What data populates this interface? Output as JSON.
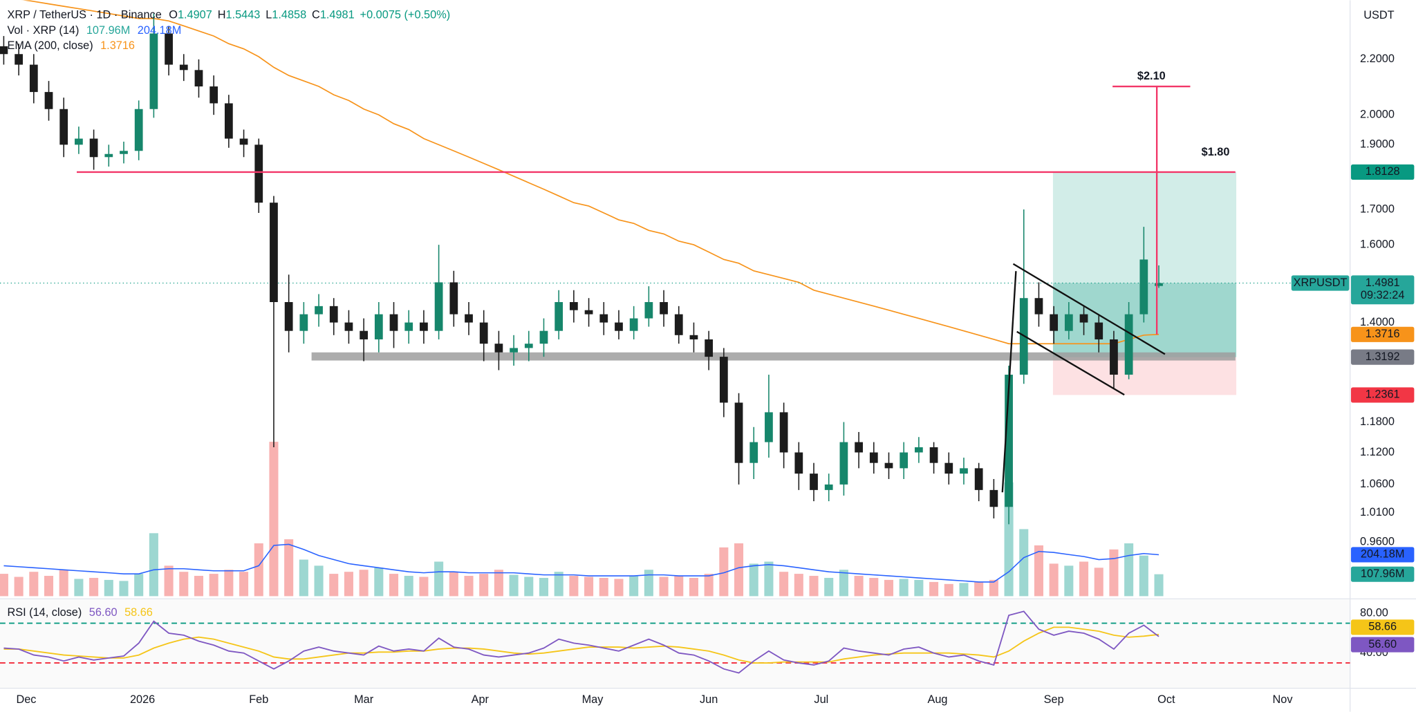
{
  "chart_data": {
    "type": "candlestick",
    "title": "XRP / TetherUS · 1D · Binance",
    "currency": "USDT",
    "ohlc_prefixes": [
      "O",
      "H",
      "L",
      "C"
    ],
    "change": "+0.0075 (+0.50%)",
    "symbol_label": "XRPUSDT",
    "countdown": "09:32:24",
    "log_scale": true,
    "up_color": "#16866b",
    "down_color": "#1c1c1c",
    "x": [
      0,
      4,
      8,
      12,
      16,
      20,
      24,
      28,
      32,
      36,
      40,
      44,
      48,
      52,
      56,
      60,
      64,
      68,
      72,
      76,
      80,
      84,
      88,
      92,
      96,
      100,
      104,
      108,
      112,
      116,
      120,
      124,
      128,
      132,
      136,
      140,
      144,
      148,
      152,
      156,
      160,
      164,
      168,
      172,
      176,
      180,
      184,
      188,
      192,
      196,
      200,
      204,
      208,
      212,
      216,
      220,
      224,
      228,
      232,
      236,
      240,
      244,
      248,
      252,
      256,
      260,
      264,
      268,
      272,
      276,
      280,
      284,
      288,
      292,
      296,
      300,
      304,
      308
    ],
    "xlim": [
      -1,
      359
    ],
    "xticks": [
      {
        "value": 6,
        "label": "Dec"
      },
      {
        "value": 37,
        "label": "2026"
      },
      {
        "value": 68,
        "label": "Feb"
      },
      {
        "value": 96,
        "label": "Mar"
      },
      {
        "value": 127,
        "label": "Apr"
      },
      {
        "value": 157,
        "label": "May"
      },
      {
        "value": 188,
        "label": "Jun"
      },
      {
        "value": 218,
        "label": "Jul"
      },
      {
        "value": 249,
        "label": "Aug"
      },
      {
        "value": 280,
        "label": "Sep"
      },
      {
        "value": 310,
        "label": "Oct"
      },
      {
        "value": 341,
        "label": "Nov"
      }
    ],
    "ylim": [
      0.875,
      2.435
    ],
    "yticks": [
      {
        "value": 2.2,
        "label": "2.2000"
      },
      {
        "value": 2,
        "label": "2.0000"
      },
      {
        "value": 1.9,
        "label": "1.9000"
      },
      {
        "value": 1.7,
        "label": "1.7000"
      },
      {
        "value": 1.6,
        "label": "1.6000"
      },
      {
        "value": 1.4,
        "label": "1.4000"
      },
      {
        "value": 1.18,
        "label": "1.1800"
      },
      {
        "value": 1.12,
        "label": "1.1200"
      },
      {
        "value": 1.06,
        "label": "1.0600"
      },
      {
        "value": 1.01,
        "label": "1.0100"
      },
      {
        "value": 0.96,
        "label": "0.9600"
      }
    ],
    "open": [
      2.25,
      2.22,
      2.18,
      2.08,
      2.02,
      1.9,
      1.92,
      1.86,
      1.87,
      1.88,
      2.02,
      2.3,
      2.18,
      2.16,
      2.1,
      2.04,
      1.92,
      1.9,
      1.72,
      1.45,
      1.38,
      1.42,
      1.44,
      1.4,
      1.38,
      1.36,
      1.42,
      1.38,
      1.4,
      1.38,
      1.5,
      1.42,
      1.4,
      1.35,
      1.33,
      1.34,
      1.35,
      1.38,
      1.45,
      1.43,
      1.42,
      1.4,
      1.38,
      1.41,
      1.45,
      1.42,
      1.37,
      1.36,
      1.32,
      1.22,
      1.1,
      1.14,
      1.2,
      1.12,
      1.08,
      1.05,
      1.06,
      1.14,
      1.12,
      1.1,
      1.09,
      1.12,
      1.13,
      1.1,
      1.08,
      1.09,
      1.05,
      1.02,
      1.28,
      1.46,
      1.42,
      1.38,
      1.42,
      1.4,
      1.36,
      1.28,
      1.42,
      1.4907
    ],
    "high": [
      2.29,
      2.26,
      2.22,
      2.12,
      2.06,
      1.96,
      1.95,
      1.9,
      1.91,
      2.05,
      2.38,
      2.33,
      2.22,
      2.2,
      2.14,
      2.07,
      1.95,
      1.92,
      1.74,
      1.52,
      1.45,
      1.47,
      1.46,
      1.43,
      1.41,
      1.45,
      1.45,
      1.43,
      1.43,
      1.6,
      1.53,
      1.45,
      1.43,
      1.38,
      1.37,
      1.38,
      1.41,
      1.48,
      1.48,
      1.46,
      1.45,
      1.43,
      1.44,
      1.49,
      1.48,
      1.44,
      1.4,
      1.38,
      1.34,
      1.24,
      1.17,
      1.28,
      1.22,
      1.14,
      1.1,
      1.08,
      1.18,
      1.16,
      1.14,
      1.12,
      1.14,
      1.15,
      1.14,
      1.12,
      1.11,
      1.1,
      1.07,
      1.3,
      1.7,
      1.5,
      1.44,
      1.45,
      1.44,
      1.42,
      1.38,
      1.45,
      1.65,
      1.5443
    ],
    "low": [
      2.18,
      2.14,
      2.04,
      1.98,
      1.86,
      1.87,
      1.82,
      1.83,
      1.84,
      1.85,
      1.99,
      2.14,
      2.12,
      2.06,
      2.0,
      1.89,
      1.86,
      1.69,
      1.13,
      1.33,
      1.35,
      1.39,
      1.37,
      1.35,
      1.31,
      1.33,
      1.34,
      1.35,
      1.35,
      1.36,
      1.39,
      1.37,
      1.31,
      1.29,
      1.3,
      1.31,
      1.32,
      1.36,
      1.4,
      1.39,
      1.37,
      1.36,
      1.36,
      1.39,
      1.39,
      1.35,
      1.33,
      1.29,
      1.19,
      1.06,
      1.07,
      1.11,
      1.09,
      1.05,
      1.03,
      1.03,
      1.04,
      1.09,
      1.08,
      1.07,
      1.07,
      1.1,
      1.08,
      1.06,
      1.06,
      1.03,
      1.0,
      0.99,
      1.26,
      1.39,
      1.35,
      1.36,
      1.37,
      1.33,
      1.25,
      1.27,
      1.4,
      1.4858
    ],
    "close": [
      2.22,
      2.18,
      2.08,
      2.02,
      1.9,
      1.92,
      1.86,
      1.87,
      1.88,
      2.02,
      2.3,
      2.18,
      2.16,
      2.1,
      2.04,
      1.92,
      1.9,
      1.72,
      1.45,
      1.38,
      1.42,
      1.44,
      1.4,
      1.38,
      1.36,
      1.42,
      1.38,
      1.4,
      1.38,
      1.5,
      1.42,
      1.4,
      1.35,
      1.33,
      1.34,
      1.35,
      1.38,
      1.45,
      1.43,
      1.42,
      1.4,
      1.38,
      1.41,
      1.45,
      1.42,
      1.37,
      1.36,
      1.32,
      1.22,
      1.1,
      1.14,
      1.2,
      1.12,
      1.08,
      1.05,
      1.06,
      1.14,
      1.12,
      1.1,
      1.09,
      1.12,
      1.13,
      1.1,
      1.08,
      1.09,
      1.05,
      1.02,
      1.28,
      1.46,
      1.42,
      1.38,
      1.42,
      1.4,
      1.36,
      1.28,
      1.42,
      1.56,
      1.4981
    ],
    "ema": {
      "name": "EMA (200, close)",
      "color": "#f7931a",
      "values": [
        2.45,
        2.44,
        2.43,
        2.42,
        2.41,
        2.4,
        2.39,
        2.38,
        2.37,
        2.36,
        2.36,
        2.35,
        2.33,
        2.31,
        2.29,
        2.26,
        2.24,
        2.21,
        2.17,
        2.14,
        2.12,
        2.1,
        2.07,
        2.05,
        2.02,
        2.0,
        1.97,
        1.95,
        1.92,
        1.9,
        1.88,
        1.86,
        1.84,
        1.82,
        1.8,
        1.78,
        1.76,
        1.74,
        1.72,
        1.71,
        1.69,
        1.67,
        1.66,
        1.64,
        1.63,
        1.61,
        1.6,
        1.58,
        1.56,
        1.55,
        1.53,
        1.52,
        1.51,
        1.5,
        1.48,
        1.47,
        1.46,
        1.45,
        1.44,
        1.43,
        1.42,
        1.41,
        1.4,
        1.39,
        1.38,
        1.37,
        1.36,
        1.35,
        1.35,
        1.35,
        1.35,
        1.35,
        1.35,
        1.35,
        1.35,
        1.36,
        1.37,
        1.3716
      ]
    },
    "volume": {
      "name": "Vol · XRP (14)",
      "ylim": [
        0,
        1000
      ],
      "up_color": "#26a69a",
      "down_color": "#ef5350",
      "values": [
        110,
        95,
        120,
        100,
        130,
        85,
        90,
        80,
        75,
        110,
        310,
        150,
        120,
        100,
        110,
        130,
        120,
        260,
        760,
        280,
        180,
        150,
        110,
        120,
        130,
        140,
        110,
        100,
        95,
        170,
        120,
        100,
        110,
        130,
        105,
        95,
        90,
        120,
        100,
        95,
        90,
        85,
        100,
        130,
        95,
        100,
        90,
        110,
        240,
        260,
        160,
        170,
        120,
        110,
        100,
        90,
        130,
        100,
        90,
        80,
        85,
        80,
        70,
        60,
        65,
        70,
        80,
        560,
        330,
        250,
        160,
        150,
        170,
        140,
        230,
        260,
        200,
        107.96
      ],
      "last_label": "107.96M",
      "ma": {
        "color": "#2962ff",
        "values": [
          150,
          145,
          140,
          135,
          130,
          125,
          120,
          115,
          110,
          110,
          130,
          135,
          135,
          130,
          125,
          125,
          125,
          150,
          250,
          255,
          230,
          200,
          180,
          160,
          150,
          140,
          130,
          120,
          115,
          120,
          120,
          115,
          115,
          115,
          115,
          110,
          105,
          105,
          105,
          100,
          100,
          100,
          100,
          105,
          105,
          100,
          100,
          100,
          115,
          140,
          150,
          155,
          150,
          140,
          130,
          120,
          115,
          110,
          105,
          100,
          95,
          90,
          85,
          80,
          75,
          70,
          70,
          120,
          190,
          220,
          215,
          205,
          195,
          180,
          185,
          200,
          210,
          204.18
        ],
        "last_label": "204.18M"
      }
    },
    "rsi": {
      "name": "RSI (14, close)",
      "color": "#7e57c2",
      "ylim": [
        4.5,
        92.7
      ],
      "yticks": [
        {
          "value": 80,
          "label": "80.00"
        },
        {
          "value": 40,
          "label": "40.00"
        }
      ],
      "bands": [
        70,
        30
      ],
      "band_colors": [
        "#089981",
        "#f23645"
      ],
      "values": [
        45,
        44,
        38,
        36,
        32,
        36,
        33,
        35,
        37,
        50,
        72,
        60,
        58,
        52,
        48,
        42,
        40,
        32,
        24,
        32,
        42,
        46,
        42,
        40,
        38,
        47,
        42,
        44,
        42,
        55,
        46,
        44,
        38,
        36,
        38,
        40,
        45,
        54,
        50,
        48,
        45,
        42,
        48,
        54,
        48,
        40,
        38,
        32,
        24,
        20,
        32,
        42,
        33,
        30,
        28,
        32,
        45,
        42,
        40,
        38,
        44,
        46,
        40,
        36,
        38,
        32,
        28,
        78,
        82,
        64,
        58,
        62,
        60,
        54,
        44,
        60,
        68,
        56.6
      ],
      "last_label": "56.60",
      "ma": {
        "color": "#f5c518",
        "values": [
          44,
          44,
          42,
          40,
          38,
          37,
          36,
          35,
          35,
          38,
          45,
          50,
          54,
          56,
          54,
          50,
          46,
          42,
          36,
          34,
          34,
          36,
          38,
          40,
          40,
          41,
          41,
          42,
          42,
          44,
          45,
          45,
          44,
          42,
          40,
          39,
          40,
          42,
          44,
          46,
          46,
          46,
          45,
          46,
          47,
          46,
          44,
          42,
          38,
          33,
          30,
          30,
          31,
          31,
          31,
          31,
          34,
          36,
          38,
          39,
          40,
          40,
          40,
          40,
          39,
          38,
          36,
          42,
          52,
          60,
          66,
          66,
          64,
          62,
          58,
          56,
          57,
          58.66
        ]
      }
    },
    "position": {
      "entry": 1.3192,
      "target": 1.8128,
      "stop": 1.2361
    },
    "annotations": [
      {
        "value": 2.1,
        "label": "$2.10"
      },
      {
        "value": 1.8,
        "label": "$1.80"
      }
    ]
  }
}
